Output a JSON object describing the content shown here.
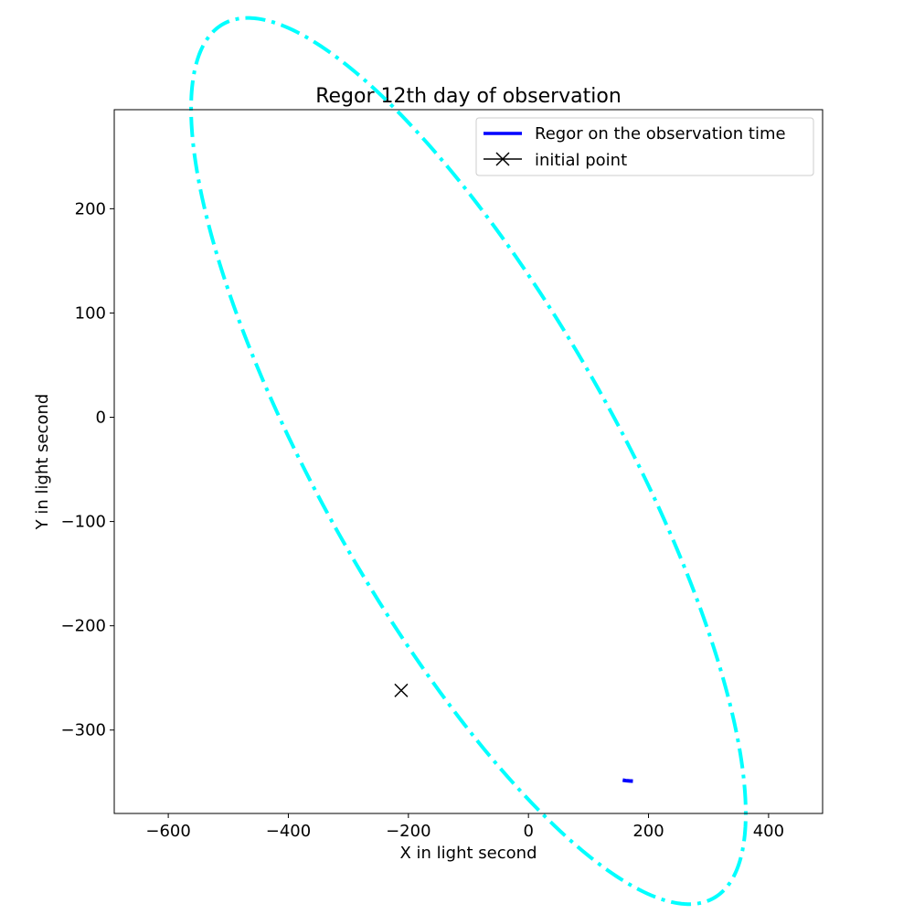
{
  "chart_data": {
    "type": "line",
    "title": "Regor 12th day of observation",
    "xlabel": "X in light second",
    "ylabel": "Y in light second",
    "xlim": [
      -690,
      490
    ],
    "ylim": [
      -380,
      295
    ],
    "xticks": [
      -600,
      -400,
      -200,
      0,
      200,
      400
    ],
    "yticks": [
      -300,
      -200,
      -100,
      0,
      100,
      200
    ],
    "xtick_labels": [
      "−600",
      "−400",
      "−200",
      "0",
      "200",
      "400"
    ],
    "ytick_labels": [
      "−300",
      "−200",
      "−100",
      "0",
      "100",
      "200"
    ],
    "grid": false,
    "legend_position": "top-right",
    "legend": [
      {
        "label": "Regor on the observation time",
        "style": "solid-line"
      },
      {
        "label": "initial point",
        "style": "x-marker"
      }
    ],
    "orbit": {
      "style": "dash-dot",
      "color": "#00ffff",
      "center": [
        -100,
        -42
      ],
      "semi_major": 595,
      "semi_minor": 200,
      "rotation_deg": -42
    },
    "observation_segment": {
      "color": "#0000ff",
      "x": [
        157,
        162,
        168,
        174
      ],
      "y": [
        -348,
        -348.5,
        -348.8,
        -349
      ]
    },
    "initial_point": {
      "x": -212,
      "y": -262,
      "color": "#000000"
    }
  }
}
